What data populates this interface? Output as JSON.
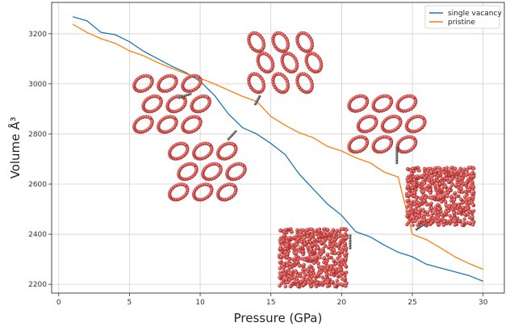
{
  "chart_data": {
    "type": "line",
    "title": "",
    "xlabel": "Pressure (GPa)",
    "ylabel": "Volume Å³",
    "xlim": [
      -0.5,
      31.5
    ],
    "ylim": [
      2165,
      3325
    ],
    "xticks": [
      0,
      5,
      10,
      15,
      20,
      25,
      30
    ],
    "yticks": [
      2200,
      2400,
      2600,
      2800,
      3000,
      3200
    ],
    "grid": true,
    "legend_position": "top-right",
    "series": [
      {
        "name": "single vacancy",
        "color": "#1f77b4",
        "x": [
          1,
          2,
          3,
          4,
          5,
          6,
          7,
          8,
          9,
          10,
          11,
          12,
          13,
          14,
          15,
          16,
          17,
          18,
          19,
          20,
          21,
          22,
          23,
          24,
          25,
          26,
          27,
          28,
          29,
          30
        ],
        "y": [
          3268,
          3252,
          3205,
          3196,
          3168,
          3130,
          3100,
          3070,
          3045,
          3010,
          2955,
          2880,
          2825,
          2800,
          2762,
          2718,
          2640,
          2580,
          2520,
          2475,
          2410,
          2390,
          2357,
          2328,
          2310,
          2280,
          2265,
          2250,
          2235,
          2212
        ]
      },
      {
        "name": "pristine",
        "color": "#ff7f0e",
        "x": [
          1,
          2,
          3,
          4,
          5,
          6,
          7,
          8,
          9,
          10,
          11,
          12,
          13,
          14,
          15,
          16,
          17,
          18,
          19,
          20,
          21,
          22,
          23,
          24,
          25,
          26,
          27,
          28,
          29,
          30
        ],
        "y": [
          3238,
          3205,
          3180,
          3162,
          3132,
          3112,
          3085,
          3062,
          3040,
          3022,
          3000,
          2975,
          2950,
          2930,
          2870,
          2835,
          2805,
          2785,
          2750,
          2732,
          2705,
          2685,
          2648,
          2628,
          2400,
          2378,
          2345,
          2310,
          2283,
          2260
        ]
      }
    ]
  },
  "insets": [
    {
      "name": "inset-structure-1",
      "kind": "tube-bundle",
      "x": 8,
      "y": 2920
    },
    {
      "name": "inset-structure-2",
      "kind": "tube-bundle",
      "x": 10.5,
      "y": 2650
    },
    {
      "name": "inset-structure-3",
      "kind": "tube-bundle",
      "x": 16,
      "y": 3085
    },
    {
      "name": "inset-structure-4",
      "kind": "tube-bundle",
      "x": 23.2,
      "y": 2840
    },
    {
      "name": "inset-structure-5",
      "kind": "collapsed-bundle",
      "x": 27,
      "y": 2550
    },
    {
      "name": "inset-structure-6",
      "kind": "collapsed-bundle",
      "x": 18,
      "y": 2305
    }
  ],
  "colors": {
    "atom": "#d9534f",
    "atom_edge": "#9e2a2a",
    "chain": "#555555"
  }
}
